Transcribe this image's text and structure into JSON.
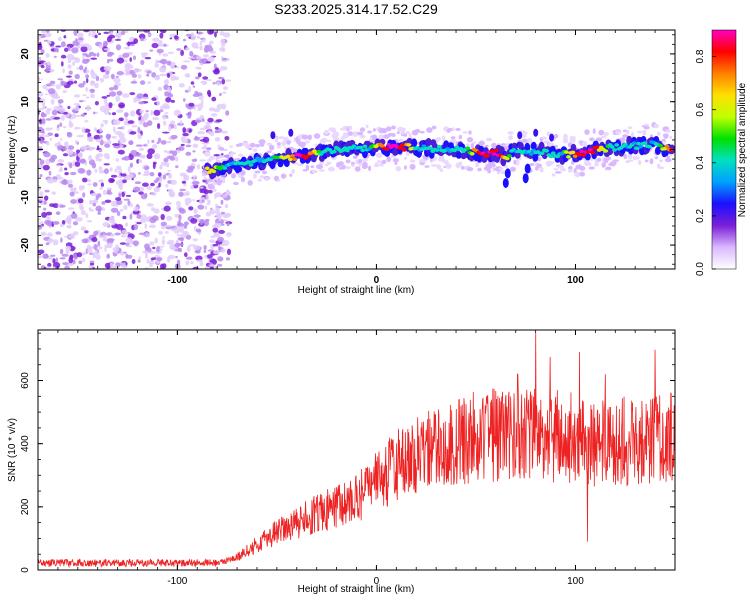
{
  "figure_title": "S233.2025.314.17.52.C29",
  "chart_data": [
    {
      "type": "heatmap",
      "title": "S233.2025.314.17.52.C29",
      "xlabel": "Height of straight line (km)",
      "ylabel": "Frequency (Hz)",
      "xlim": [
        -170,
        150
      ],
      "ylim": [
        -25,
        25
      ],
      "x_ticks": [
        -100,
        0,
        100
      ],
      "y_ticks": [
        -20,
        -10,
        0,
        10,
        20
      ],
      "x_tick_labels": [
        "-100",
        "0",
        "100"
      ],
      "y_tick_labels": [
        "-20",
        "-10",
        "0",
        "10",
        "20"
      ],
      "colorbar": {
        "label": "Normalized spectral amplitude",
        "range": [
          0,
          0.9
        ],
        "ticks": [
          0.0,
          0.2,
          0.4,
          0.6,
          0.8
        ],
        "tick_labels": [
          "0.0",
          "0.2",
          "0.4",
          "0.6",
          "0.8"
        ],
        "colors": [
          "#ffffff",
          "#d9b8ff",
          "#7a1fd6",
          "#1a10ff",
          "#00a0ff",
          "#00e0c0",
          "#00e000",
          "#c0ff00",
          "#ffe000",
          "#ff8000",
          "#ff0000",
          "#ff00c0"
        ]
      },
      "noise_region_x": [
        -170,
        -80
      ],
      "ridge_center_hz": [
        [
          -85,
          -4.5
        ],
        [
          -75,
          -3.5
        ],
        [
          -60,
          -2.5
        ],
        [
          -45,
          -1.8
        ],
        [
          -30,
          -0.8
        ],
        [
          -20,
          0
        ],
        [
          -10,
          0.3
        ],
        [
          0,
          0.5
        ],
        [
          10,
          0.5
        ],
        [
          20,
          0.4
        ],
        [
          30,
          0.2
        ],
        [
          40,
          0
        ],
        [
          50,
          -0.5
        ],
        [
          55,
          -1
        ],
        [
          60,
          -0.8
        ],
        [
          65,
          -1.5
        ],
        [
          70,
          0
        ],
        [
          80,
          -0.5
        ],
        [
          90,
          -1
        ],
        [
          100,
          -1
        ],
        [
          110,
          0
        ],
        [
          120,
          0.5
        ],
        [
          130,
          0.8
        ],
        [
          140,
          1
        ],
        [
          148,
          0
        ]
      ]
    },
    {
      "type": "line",
      "xlabel": "Height of straight line (km)",
      "ylabel": "SNR (10 * v/v)",
      "xlim": [
        -170,
        150
      ],
      "ylim": [
        0,
        760
      ],
      "x_ticks": [
        -100,
        0,
        100
      ],
      "y_ticks": [
        0,
        200,
        400,
        600
      ],
      "x_tick_labels": [
        "-100",
        "0",
        "100"
      ],
      "y_tick_labels": [
        "0",
        "200",
        "400",
        "600"
      ],
      "color": "#ee2222",
      "trend": {
        "x": [
          -170,
          -80,
          -70,
          -60,
          -50,
          -40,
          -30,
          -20,
          -10,
          0,
          10,
          20,
          30,
          40,
          50,
          60,
          70,
          80,
          90,
          100,
          110,
          120,
          130,
          140,
          150
        ],
        "y": [
          22,
          22,
          40,
          80,
          120,
          150,
          180,
          200,
          230,
          280,
          330,
          370,
          400,
          410,
          420,
          430,
          440,
          430,
          425,
          420,
          400,
          410,
          405,
          410,
          410
        ]
      },
      "spikes": [
        {
          "x": 80,
          "y": 750
        },
        {
          "x": 102,
          "y": 690
        },
        {
          "x": 106,
          "y": 90
        },
        {
          "x": 71,
          "y": 620
        },
        {
          "x": 115,
          "y": 620
        },
        {
          "x": 148,
          "y": 560
        }
      ]
    }
  ]
}
